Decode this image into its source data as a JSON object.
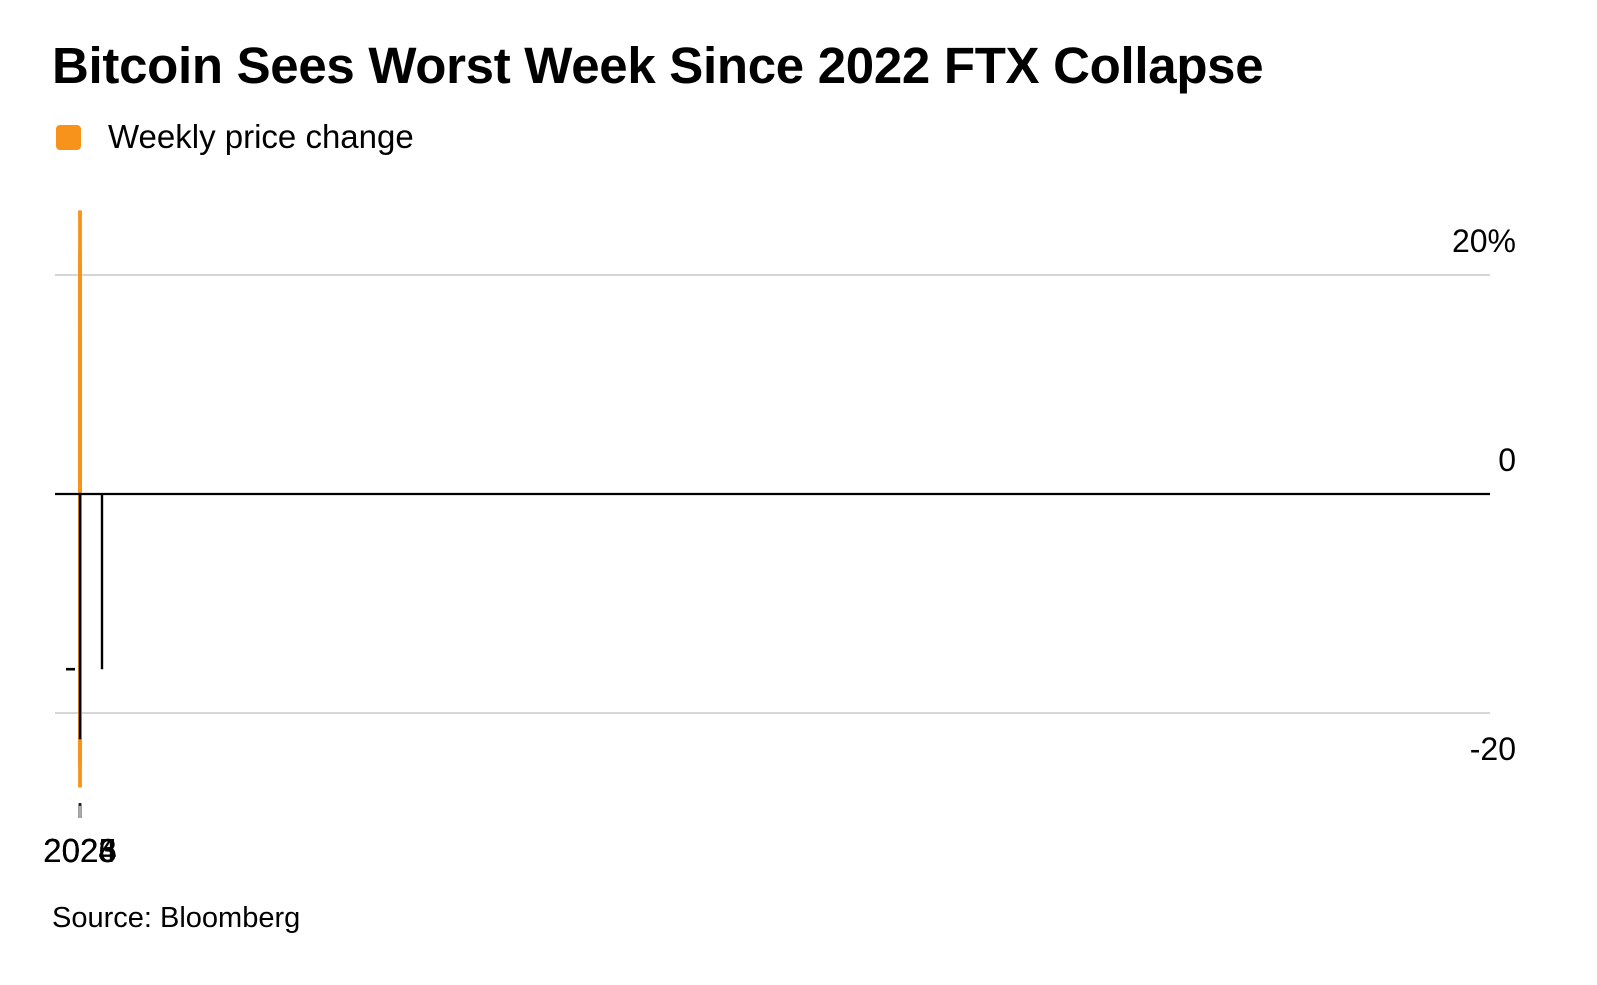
{
  "title": "Bitcoin Sees Worst Week Since 2022 FTX Collapse",
  "legend": {
    "label": "Weekly price change",
    "color": "#F7931A"
  },
  "source": "Source: Bloomberg",
  "chart_data": {
    "type": "bar",
    "title": "Bitcoin Sees Worst Week Since 2022 FTX Collapse",
    "xlabel": "",
    "ylabel": "",
    "ylim": [
      -28,
      28
    ],
    "yticks": [
      {
        "value": 20,
        "label": "20%"
      },
      {
        "value": 0,
        "label": "0"
      },
      {
        "value": -20,
        "label": "-20"
      }
    ],
    "x_tick_labels": [
      "2023",
      "2024",
      "2025",
      "2026"
    ],
    "x_ticks_minor": "monthly",
    "grid": "horizontal",
    "legend_position": "top-left",
    "bar_color": "#F7931A",
    "series": [
      {
        "name": "Weekly price change",
        "start_week": "2022-01-03",
        "frequency": "weekly",
        "values": [
          -7.4,
          -9.9,
          1.6,
          -17.8,
          6.6,
          10.1,
          1.2,
          -9.4,
          -2.2,
          3.9,
          -1.2,
          6.2,
          11.2,
          -0.3,
          -6.9,
          -6.7,
          -1.1,
          -2.3,
          -3.5,
          -10.2,
          -9.0,
          -3.0,
          2.6,
          -8.3,
          -24.5,
          -9.1,
          6.7,
          -0.2,
          8.2,
          8.5,
          -0.2,
          4.6,
          -11.5,
          -7.0,
          8.5,
          0.1,
          -8.8,
          1.6,
          1.3,
          -1.0,
          -0.4,
          5.9,
          2.0,
          -22.4,
          -1.0,
          0.1,
          1.9,
          3.1,
          0.1,
          -1.0,
          1.9,
          22.1,
          7.8,
          5.4,
          -3.7,
          -5.3,
          11.1,
          -3.8,
          -5.0,
          -4.6,
          25.9,
          -0.7,
          0.8,
          7.7,
          6.2,
          -9.5,
          -1.5,
          -6.8,
          2.7,
          0.1,
          0.1,
          14.3,
          -0.7,
          -1.1,
          -0.7,
          -1.3,
          0.3,
          -3.0,
          -0.7,
          -10.7,
          -0.7,
          -0.4,
          2.1,
          -0.1,
          2.3,
          2.7,
          -2.8,
          3.8,
          9.5,
          14.1,
          2.2,
          6.8,
          -4.7,
          3.6,
          9.9,
          -1.0,
          1.3,
          3.8,
          -2.0,
          -0.2,
          1.1,
          12.2,
          7.6,
          20.3,
          9.7,
          -1.5,
          -3.2,
          6.9,
          -4.7,
          -0.9,
          -7.9,
          -1.2,
          -3.0,
          7.6,
          -0.8,
          3.4,
          2.6,
          -4.8,
          -1.5,
          12.3,
          -4.0,
          -3.3,
          -7.4,
          -1.3,
          0.2,
          -12.9,
          1.4,
          9.7,
          4.6,
          -9.2,
          1.9,
          7.3,
          4.9,
          4.4,
          2.5,
          -4.4,
          -0.3,
          -1.0,
          9.0,
          -1.6,
          0.2,
          14.4,
          10.7,
          7.8,
          2.0,
          1.8,
          2.5,
          -1.0,
          -7.6,
          -3.2,
          1.0,
          5.4,
          -6.4,
          -2.2,
          -0.7,
          -0.8,
          7.3,
          -1.9,
          -0.5,
          -1.6,
          -1.6,
          -11.7,
          0.1,
          -0.1,
          2.0,
          -0.3,
          1.5,
          -3.2,
          -4.9,
          4.8,
          7.3,
          -3.1,
          -1.2,
          10.6,
          8.3,
          2.8,
          6.1,
          -0.4,
          -6.9,
          -0.1,
          8.1,
          -1.4,
          -0.9,
          2.6,
          9.4,
          -4.6,
          1.7,
          4.6,
          -2.9,
          -0.1,
          -1.3,
          -6.5,
          3.4,
          -0.5,
          -0.2,
          2.8,
          -0.2,
          -3.2,
          -2.6,
          -4.5,
          -5.7,
          -1.1,
          5.4,
          6.7,
          -1.5,
          -4.3,
          -5.8,
          2.4,
          1.9,
          -4.4,
          -6.1,
          1.3,
          -4.9,
          -5.0,
          -3.3,
          -12.6,
          -8.2,
          -1.2,
          -4.7,
          -1.4,
          -0.5,
          -1.6,
          -1.1,
          0.2,
          0.3,
          -0.7,
          1.6,
          -0.6,
          4.8,
          3.8,
          -2.9,
          -7.8,
          -1.6,
          -0.2,
          -13.3,
          -11.7,
          -7.4,
          -1.8,
          -3.3,
          3.6,
          5.7,
          -3.9,
          -1.4,
          4.4,
          7.1,
          -4.3,
          -2.5,
          -0.4,
          -2.6,
          -3.7,
          -1.1,
          -1.1,
          -1.7,
          -0.6,
          -4.8,
          -5.9,
          -13.2,
          -10.6,
          -2.9,
          -4.0,
          -5.5,
          -1.6,
          -3.6,
          -6.1,
          -5.3,
          -4.5,
          -1.0,
          -0.2,
          -1.7,
          3.1,
          -9.1,
          -1.2,
          -1.1,
          -1.5,
          -1.6,
          -2.2,
          4.1,
          -4.8,
          -1.0,
          -12.0,
          -9.3,
          -7.4,
          1.9,
          -2.9,
          -2.4,
          -1.1,
          6.4,
          -5.0,
          -1.5,
          -2.6,
          1.6,
          -2.1,
          3.3,
          2.5,
          4.3,
          1.3,
          -2.3,
          -4.2,
          -1.6,
          -1.5,
          -3.7,
          -4.2,
          -6.5,
          -7.4,
          -11.7,
          -13.2,
          -18.2,
          -21.4,
          -22.3,
          -26.8,
          -24.9,
          -21.6,
          -17.4,
          -13.5,
          -9.3,
          -6.1,
          -3.5,
          -1.8,
          -0.5,
          2.7,
          4.3,
          6.4,
          2.1,
          -0.8,
          -1.5,
          4.7,
          2.1,
          -3.3,
          -3.8,
          -1.4,
          -2.6,
          -2.0,
          -1.6,
          -4.7,
          -3.0,
          -2.4,
          1.0,
          -4.6,
          -3.5,
          4.2,
          3.7,
          -0.1,
          -3.3,
          -0.5,
          -1.7,
          -3.5
        ]
      }
    ],
    "annotations": [
      {
        "type": "reference-line",
        "value": -16,
        "style": "dashed",
        "label": ""
      }
    ]
  }
}
